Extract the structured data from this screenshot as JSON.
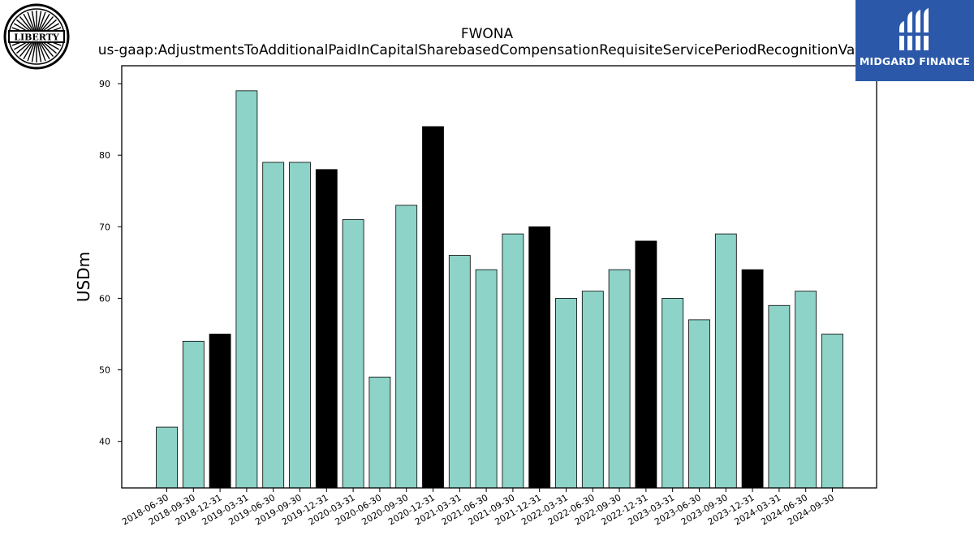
{
  "title": "FWONA",
  "subtitle": "us-gaap:AdjustmentsToAdditionalPaidInCapitalSharebasedCompensationRequisiteServicePeriodRecognitionValue",
  "logos": {
    "left_text": "LIBERTY",
    "right_text": "MIDGARD FINANCE"
  },
  "colors": {
    "bar_default": "#8dd3c7",
    "bar_highlight": "#000000",
    "brand_blue": "#2b58a8"
  },
  "chart_data": {
    "type": "bar",
    "title": "FWONA",
    "subtitle": "us-gaap:AdjustmentsToAdditionalPaidInCapitalSharebasedCompensationRequisiteServicePeriodRecognitionValue",
    "xlabel": "",
    "ylabel": "USDm",
    "ylim": [
      33.5,
      92.5
    ],
    "yticks": [
      40,
      50,
      60,
      70,
      80,
      90
    ],
    "grid": false,
    "categories": [
      "2018-06-30",
      "2018-09-30",
      "2018-12-31",
      "2019-03-31",
      "2019-06-30",
      "2019-09-30",
      "2019-12-31",
      "2020-03-31",
      "2020-06-30",
      "2020-09-30",
      "2020-12-31",
      "2021-03-31",
      "2021-06-30",
      "2021-09-30",
      "2021-12-31",
      "2022-03-31",
      "2022-06-30",
      "2022-09-30",
      "2022-12-31",
      "2023-03-31",
      "2023-06-30",
      "2023-09-30",
      "2023-12-31",
      "2024-03-31",
      "2024-06-30",
      "2024-09-30"
    ],
    "values": [
      42,
      54,
      55,
      89,
      79,
      79,
      78,
      71,
      49,
      73,
      84,
      66,
      64,
      69,
      70,
      60,
      61,
      64,
      68,
      60,
      57,
      69,
      64,
      59,
      61,
      55
    ],
    "highlight": [
      false,
      false,
      true,
      false,
      false,
      false,
      true,
      false,
      false,
      false,
      true,
      false,
      false,
      false,
      true,
      false,
      false,
      false,
      true,
      false,
      false,
      false,
      true,
      false,
      false,
      false
    ]
  }
}
